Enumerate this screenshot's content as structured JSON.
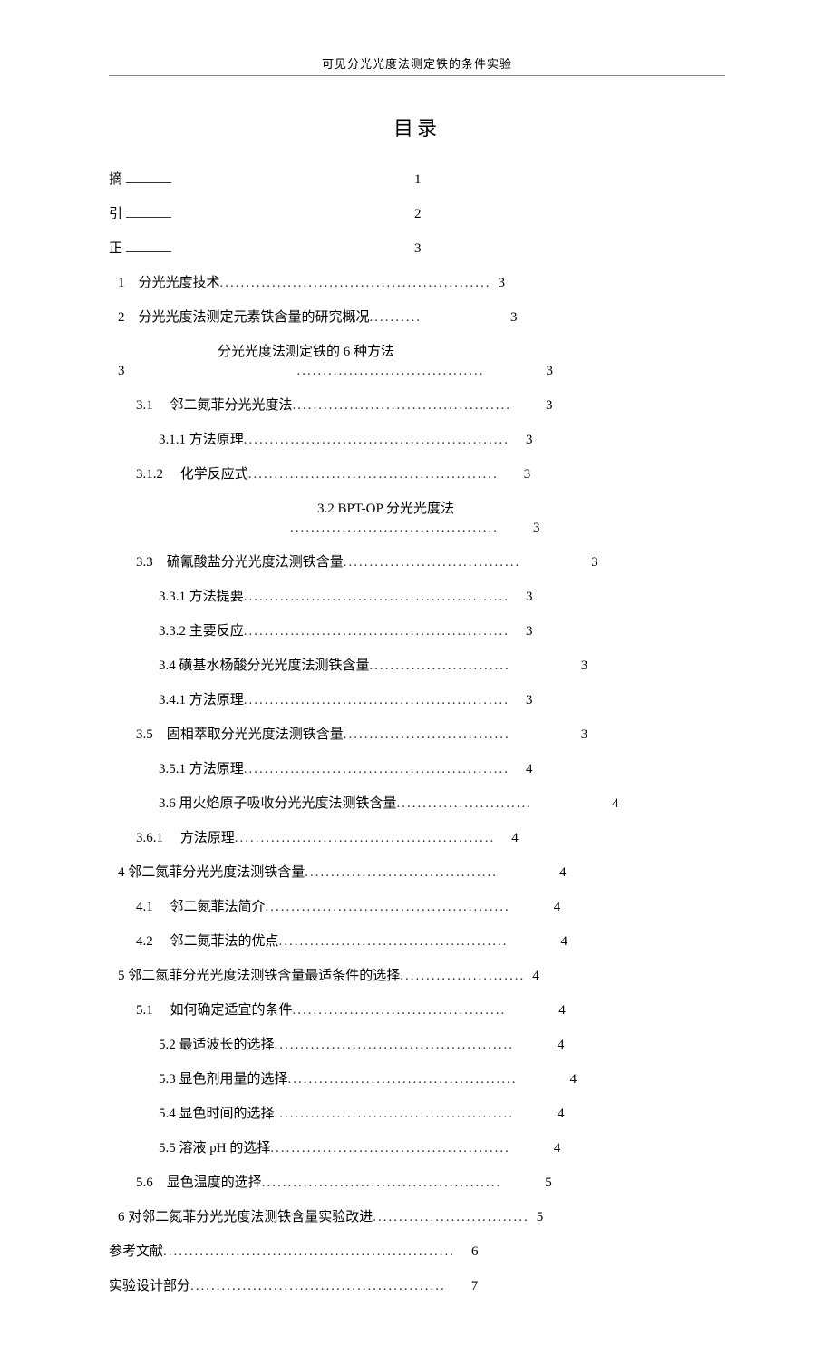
{
  "header": "可见分光光度法测定铁的条件实验",
  "tocTitle": "目录",
  "entries": [
    {
      "type": "simple",
      "level": 0,
      "label": "摘",
      "underline": true,
      "wideGap": 260,
      "page": "1"
    },
    {
      "type": "simple",
      "level": 0,
      "label": "引",
      "underline": true,
      "wideGap": 260,
      "page": "2"
    },
    {
      "type": "simple",
      "level": 0,
      "label": "正",
      "underline": true,
      "wideGap": 260,
      "page": "3"
    },
    {
      "type": "dotted",
      "level": 1,
      "label": "1　分光光度技术",
      "dots": "....................................................",
      "page": "3",
      "pageGap": 0
    },
    {
      "type": "dotted",
      "level": 1,
      "label": "2　分光光度法测定元素铁含量的研究概况",
      "dots": "..........",
      "page": "3",
      "pageGap": 90
    },
    {
      "type": "wrapped",
      "level": 0,
      "line1": "",
      "line2": "分光光度法测定铁的 6 种方法",
      "prefixLabel": "3",
      "dots": "....................................",
      "page": "3",
      "pageGap": 60
    },
    {
      "type": "dotted",
      "level": 2,
      "label": "3.1　 邻二氮菲分光光度法",
      "dots": "..........................................",
      "page": "3",
      "pageGap": 30
    },
    {
      "type": "dotted",
      "level": 3,
      "label": "3.1.1  方法原理",
      "dots": "...................................................",
      "page": "3",
      "pageGap": 10
    },
    {
      "type": "dotted",
      "level": 2,
      "label": "3.1.2　 化学反应式",
      "dots": "................................................",
      "page": "3",
      "pageGap": 20
    },
    {
      "type": "wrapped2",
      "level": 0,
      "line1": "3.2 BPT-OP 分光光度法",
      "dots": "........................................",
      "page": "3",
      "pageGap": 30
    },
    {
      "type": "dotted",
      "level": 2,
      "label": "3.3　硫氰酸盐分光光度法测铁含量",
      "dots": "..................................",
      "page": "3",
      "pageGap": 70
    },
    {
      "type": "dotted",
      "level": 3,
      "label": "3.3.1  方法提要",
      "dots": "...................................................",
      "page": "3",
      "pageGap": 10
    },
    {
      "type": "dotted",
      "level": 3,
      "label": "3.3.2 主要反应",
      "dots": "...................................................",
      "page": "3",
      "pageGap": 10
    },
    {
      "type": "dotted",
      "level": 3,
      "label": "3.4 磺基水杨酸分光光度法测铁含量",
      "dots": "...........................",
      "page": "3",
      "pageGap": 70
    },
    {
      "type": "dotted",
      "level": 3,
      "label": "3.4.1  方法原理",
      "dots": "...................................................",
      "page": "3",
      "pageGap": 10
    },
    {
      "type": "dotted",
      "level": 2,
      "label": "3.5　固相萃取分光光度法测铁含量",
      "dots": "................................",
      "page": "3",
      "pageGap": 70
    },
    {
      "type": "dotted",
      "level": 3,
      "label": "3.5.1  方法原理",
      "dots": "...................................................",
      "page": "4",
      "pageGap": 10
    },
    {
      "type": "dotted",
      "level": 3,
      "label": "3.6 用火焰原子吸收分光光度法测铁含量",
      "dots": "..........................",
      "page": "4",
      "pageGap": 80
    },
    {
      "type": "dotted",
      "level": 2,
      "label": "3.6.1　 方法原理",
      "dots": "..................................................",
      "page": "4",
      "pageGap": 10
    },
    {
      "type": "dotted",
      "level": 1,
      "label": "4 邻二氮菲分光光度法测铁含量",
      "dots": ".....................................",
      "page": "4",
      "pageGap": 60
    },
    {
      "type": "dotted",
      "level": 2,
      "label": "4.1　 邻二氮菲法简介",
      "dots": "...............................................",
      "page": "4",
      "pageGap": 40
    },
    {
      "type": "dotted",
      "level": 2,
      "label": "4.2　 邻二氮菲法的优点",
      "dots": "............................................",
      "page": "4",
      "pageGap": 50
    },
    {
      "type": "dotted",
      "level": 1,
      "label": "5  邻二氮菲分光光度法测铁含量最适条件的选择",
      "dots": "........................",
      "page": "4",
      "pageGap": 0
    },
    {
      "type": "dotted",
      "level": 2,
      "label": "5.1　 如何确定适宜的条件",
      "dots": ".........................................",
      "page": "4",
      "pageGap": 50
    },
    {
      "type": "dotted",
      "level": 3,
      "label": "5.2 最适波长的选择",
      "dots": "..............................................",
      "page": "4",
      "pageGap": 40
    },
    {
      "type": "dotted",
      "level": 3,
      "label": "5.3 显色剂用量的选择",
      "dots": "............................................",
      "page": "4",
      "pageGap": 50
    },
    {
      "type": "dotted",
      "level": 3,
      "label": "5.4 显色时间的选择",
      "dots": "..............................................",
      "page": "4",
      "pageGap": 40
    },
    {
      "type": "dotted",
      "level": 3,
      "label": "5.5 溶液 pH 的选择",
      "dots": "..............................................",
      "page": "4",
      "pageGap": 40
    },
    {
      "type": "dotted",
      "level": 2,
      "label": "5.6　显色温度的选择",
      "dots": "..............................................",
      "page": "5",
      "pageGap": 40
    },
    {
      "type": "dotted",
      "level": 1,
      "label": "6 对邻二氮菲分光光度法测铁含量实验改进",
      "dots": "..............................",
      "page": "5",
      "pageGap": 0
    },
    {
      "type": "dotted",
      "level": 0,
      "label": "参考文献",
      "dots": "........................................................",
      "page": "6",
      "pageGap": 10
    },
    {
      "type": "dotted",
      "level": 0,
      "label": "实验设计部分",
      "dots": ".................................................",
      "page": "7",
      "pageGap": 20
    }
  ]
}
